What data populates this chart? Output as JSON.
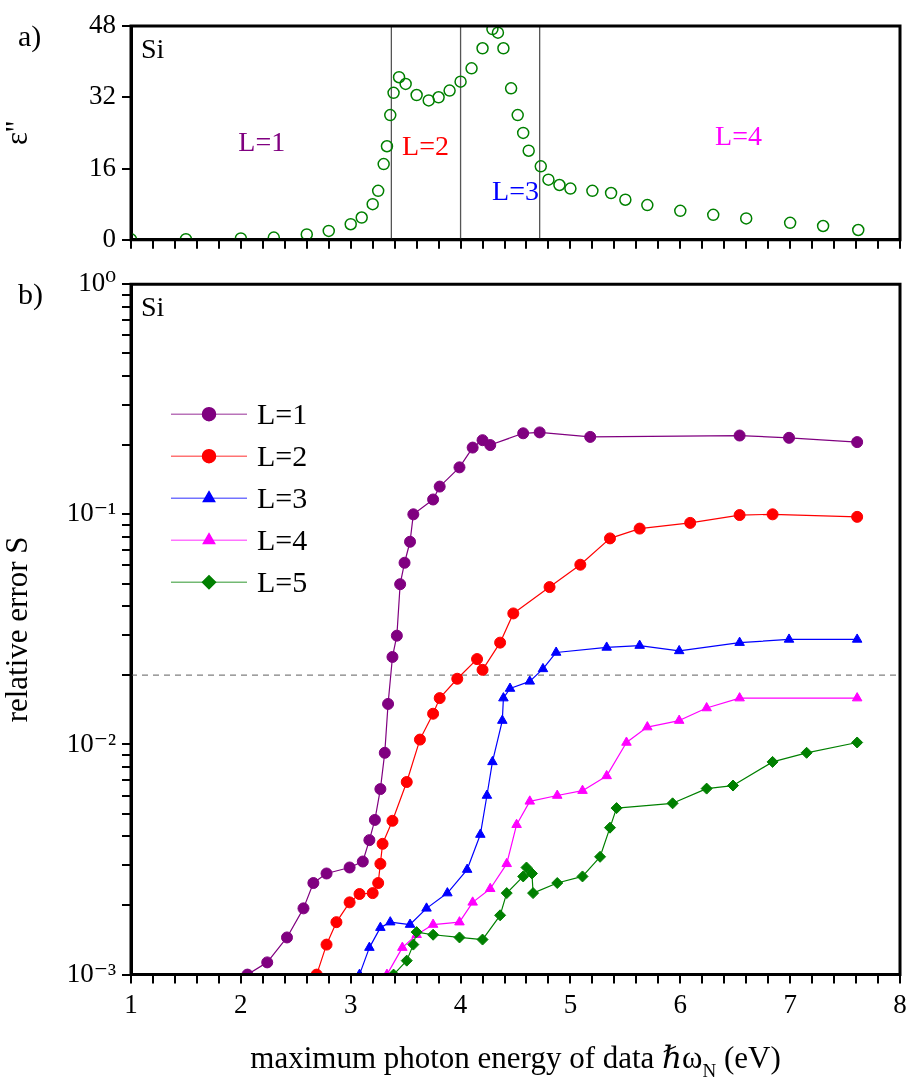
{
  "chart_data": [
    {
      "type": "scatter",
      "ylabel": "ε''",
      "xlim": [
        1,
        8
      ],
      "ylim": [
        0,
        48
      ],
      "yticks": [
        0,
        16,
        32,
        48
      ],
      "xticks": [
        1,
        {
          "value": 1.2,
          "label": null
        },
        {
          "value": 1.4,
          "label": null
        },
        {
          "value": 1.6,
          "label": null
        },
        {
          "value": 1.8,
          "label": null
        },
        2,
        {
          "value": 2.2,
          "label": null
        },
        {
          "value": 2.4,
          "label": null
        },
        {
          "value": 2.6,
          "label": null
        },
        {
          "value": 2.8,
          "label": null
        },
        3,
        {
          "value": 3.2,
          "label": null
        },
        {
          "value": 3.4,
          "label": null
        },
        {
          "value": 3.6,
          "label": null
        },
        {
          "value": 3.8,
          "label": null
        },
        4,
        {
          "value": 4.2,
          "label": null
        },
        {
          "value": 4.4,
          "label": null
        },
        {
          "value": 4.6,
          "label": null
        },
        {
          "value": 4.8,
          "label": null
        },
        5,
        {
          "value": 5.2,
          "label": null
        },
        {
          "value": 5.4,
          "label": null
        },
        {
          "value": 5.6,
          "label": null
        },
        {
          "value": 5.8,
          "label": null
        },
        6,
        {
          "value": 6.2,
          "label": null
        },
        {
          "value": 6.4,
          "label": null
        },
        {
          "value": 6.6,
          "label": null
        },
        {
          "value": 6.8,
          "label": null
        },
        7,
        {
          "value": 7.2,
          "label": null
        },
        {
          "value": 7.4,
          "label": null
        },
        {
          "value": 7.6,
          "label": null
        },
        {
          "value": 7.8,
          "label": null
        },
        8
      ],
      "tick_labels": "y",
      "marker": "circle",
      "annotations": [
        "a)",
        "Si",
        "L=1",
        "L=2",
        "L=3",
        "L=4"
      ],
      "ref_lines": [
        {
          "axis": "x",
          "value": 3.37,
          "color": "#555555"
        },
        {
          "axis": "x",
          "value": 4.0,
          "color": "#555555"
        },
        {
          "axis": "x",
          "value": 4.72,
          "color": "#555555"
        }
      ],
      "series": [
        {
          "color": "#008000",
          "x": [
            1,
            1.5,
            2,
            2.3,
            2.6,
            2.8,
            3,
            3.1,
            3.2,
            3.25,
            3.3,
            3.33,
            3.36,
            3.39,
            3.44,
            3.5,
            3.6,
            3.71,
            3.8,
            3.9,
            4,
            4.1,
            4.2,
            4.29,
            4.34,
            4.39,
            4.46,
            4.52,
            4.57,
            4.62,
            4.73,
            4.8,
            4.9,
            5,
            5.2,
            5.37,
            5.5,
            5.7,
            6,
            6.3,
            6.6,
            7,
            7.3,
            7.62
          ],
          "values": [
            0.1,
            0.15,
            0.3,
            0.5,
            1.2,
            2,
            3.5,
            5,
            8,
            11,
            17,
            21,
            28,
            33,
            36.5,
            35,
            32.5,
            31.3,
            32,
            33.5,
            35.5,
            38.5,
            43,
            47.3,
            46.5,
            43,
            34,
            28,
            24,
            20,
            16.5,
            13.5,
            12.3,
            11.5,
            11,
            10.5,
            9,
            7.8,
            6.5,
            5.6,
            4.8,
            3.8,
            3.1,
            2.2
          ]
        }
      ]
    },
    {
      "type": "line",
      "xlabel": "maximum photon energy of data ℏω$_{N}$ (eV)",
      "ylabel": "relative error S",
      "xlim": [
        1,
        8
      ],
      "ylim": [
        0.001,
        1
      ],
      "log": "y",
      "legend": "top left",
      "xticks": [
        1,
        {
          "value": 1.2,
          "label": null
        },
        {
          "value": 1.4,
          "label": null
        },
        {
          "value": 1.6,
          "label": null
        },
        {
          "value": 1.8,
          "label": null
        },
        2,
        {
          "value": 2.2,
          "label": null
        },
        {
          "value": 2.4,
          "label": null
        },
        {
          "value": 2.6,
          "label": null
        },
        {
          "value": 2.8,
          "label": null
        },
        3,
        {
          "value": 3.2,
          "label": null
        },
        {
          "value": 3.4,
          "label": null
        },
        {
          "value": 3.6,
          "label": null
        },
        {
          "value": 3.8,
          "label": null
        },
        4,
        {
          "value": 4.2,
          "label": null
        },
        {
          "value": 4.4,
          "label": null
        },
        {
          "value": 4.6,
          "label": null
        },
        {
          "value": 4.8,
          "label": null
        },
        5,
        {
          "value": 5.2,
          "label": null
        },
        {
          "value": 5.4,
          "label": null
        },
        {
          "value": 5.6,
          "label": null
        },
        {
          "value": 5.8,
          "label": null
        },
        6,
        {
          "value": 6.2,
          "label": null
        },
        {
          "value": 6.4,
          "label": null
        },
        {
          "value": 6.6,
          "label": null
        },
        {
          "value": 6.8,
          "label": null
        },
        7,
        {
          "value": 7.2,
          "label": null
        },
        {
          "value": 7.4,
          "label": null
        },
        {
          "value": 7.6,
          "label": null
        },
        {
          "value": 7.8,
          "label": null
        },
        8
      ],
      "yticks": [
        {
          "value": 0.001,
          "label": "10⁻³"
        },
        {
          "value": 0.002,
          "label": null
        },
        {
          "value": 0.003,
          "label": null
        },
        {
          "value": 0.004,
          "label": null
        },
        {
          "value": 0.005,
          "label": null
        },
        {
          "value": 0.006,
          "label": null
        },
        {
          "value": 0.007,
          "label": null
        },
        {
          "value": 0.008,
          "label": null
        },
        {
          "value": 0.009,
          "label": null
        },
        {
          "value": 0.01,
          "label": "10⁻²"
        },
        {
          "value": 0.02,
          "label": null
        },
        {
          "value": 0.03,
          "label": null
        },
        {
          "value": 0.04,
          "label": null
        },
        {
          "value": 0.05,
          "label": null
        },
        {
          "value": 0.06,
          "label": null
        },
        {
          "value": 0.07,
          "label": null
        },
        {
          "value": 0.08,
          "label": null
        },
        {
          "value": 0.09,
          "label": null
        },
        {
          "value": 0.1,
          "label": "10⁻¹"
        },
        {
          "value": 0.2,
          "label": null
        },
        {
          "value": 0.3,
          "label": null
        },
        {
          "value": 0.4,
          "label": null
        },
        {
          "value": 0.5,
          "label": null
        },
        {
          "value": 0.6,
          "label": null
        },
        {
          "value": 0.7,
          "label": null
        },
        {
          "value": 0.8,
          "label": null
        },
        {
          "value": 0.9,
          "label": null
        },
        {
          "value": 1,
          "label": "10⁰"
        }
      ],
      "annotations": [
        "b)",
        "Si"
      ],
      "ref_lines": [
        {
          "axis": "y",
          "value": 0.02,
          "color": "#808080",
          "line_style": "dashed"
        }
      ],
      "series": [
        {
          "name": "L=1",
          "color": "#800080",
          "marker": "circle",
          "x": [
            2.06,
            2.24,
            2.42,
            2.57,
            2.66,
            2.78,
            2.99,
            3.11,
            3.17,
            3.22,
            3.27,
            3.31,
            3.34,
            3.38,
            3.42,
            3.45,
            3.49,
            3.54,
            3.57,
            3.75,
            3.81,
            3.99,
            4.11,
            4.2,
            4.27,
            4.57,
            4.72,
            5.18,
            6.54,
            6.99,
            7.61
          ],
          "values": [
            0.001,
            0.00113,
            0.00145,
            0.00194,
            0.0025,
            0.00275,
            0.00292,
            0.0031,
            0.00384,
            0.0047,
            0.0064,
            0.0092,
            0.015,
            0.024,
            0.0297,
            0.0497,
            0.0616,
            0.076,
            0.1,
            0.116,
            0.132,
            0.16,
            0.195,
            0.21,
            0.2,
            0.225,
            0.227,
            0.217,
            0.22,
            0.215,
            0.206
          ]
        },
        {
          "name": "L=2",
          "color": "#ff0000",
          "marker": "circle",
          "x": [
            2.69,
            2.78,
            2.87,
            2.99,
            3.08,
            3.2,
            3.25,
            3.27,
            3.29,
            3.38,
            3.51,
            3.63,
            3.75,
            3.81,
            3.97,
            4.15,
            4.2,
            4.36,
            4.48,
            4.81,
            5.09,
            5.36,
            5.63,
            6.09,
            6.54,
            6.84,
            7.61
          ],
          "values": [
            0.001,
            0.00135,
            0.00169,
            0.00206,
            0.00224,
            0.00226,
            0.0025,
            0.00303,
            0.0037,
            0.00466,
            0.00687,
            0.0105,
            0.0136,
            0.0159,
            0.0193,
            0.0235,
            0.0211,
            0.0277,
            0.0371,
            0.0483,
            0.0604,
            0.0786,
            0.0867,
            0.0918,
            0.0993,
            0.1,
            0.0975
          ]
        },
        {
          "name": "L=3",
          "color": "#0000ff",
          "marker": "triangle",
          "x": [
            3.08,
            3.17,
            3.27,
            3.36,
            3.54,
            3.69,
            3.88,
            4.06,
            4.18,
            4.24,
            4.29,
            4.38,
            4.39,
            4.45,
            4.63,
            4.75,
            4.87,
            5.33,
            5.63,
            5.99,
            6.54,
            6.99,
            7.61
          ],
          "values": [
            0.001,
            0.00131,
            0.0016,
            0.00169,
            0.00165,
            0.00194,
            0.00226,
            0.00286,
            0.00406,
            0.006,
            0.0084,
            0.0127,
            0.0159,
            0.0175,
            0.0188,
            0.0213,
            0.0251,
            0.0264,
            0.0269,
            0.0255,
            0.0277,
            0.0286,
            0.0286
          ]
        },
        {
          "name": "L=4",
          "color": "#ff00ff",
          "marker": "triangle",
          "x": [
            3.33,
            3.47,
            3.6,
            3.75,
            3.99,
            4.11,
            4.27,
            4.42,
            4.51,
            4.63,
            4.88,
            5.11,
            5.33,
            5.51,
            5.7,
            5.99,
            6.24,
            6.54,
            7.61
          ],
          "values": [
            0.001,
            0.00131,
            0.00149,
            0.00165,
            0.00169,
            0.00206,
            0.00236,
            0.00303,
            0.00448,
            0.00566,
            0.006,
            0.0063,
            0.0073,
            0.0102,
            0.0119,
            0.0127,
            0.0144,
            0.0159,
            0.0159
          ]
        },
        {
          "name": "L=5",
          "color": "#008000",
          "marker": "diamond",
          "x": [
            3.39,
            3.51,
            3.57,
            3.6,
            3.75,
            3.99,
            4.2,
            4.36,
            4.42,
            4.57,
            4.6,
            4.65,
            4.66,
            4.88,
            5.11,
            5.27,
            5.36,
            5.42,
            5.93,
            6.24,
            6.48,
            6.84,
            7.15,
            7.61
          ],
          "values": [
            0.001,
            0.00115,
            0.00135,
            0.00153,
            0.00149,
            0.00145,
            0.00142,
            0.00181,
            0.00226,
            0.00267,
            0.00292,
            0.00275,
            0.00226,
            0.0025,
            0.00267,
            0.00325,
            0.00435,
            0.00529,
            0.00555,
            0.00643,
            0.00663,
            0.0084,
            0.0092,
            0.0102
          ]
        }
      ]
    }
  ]
}
